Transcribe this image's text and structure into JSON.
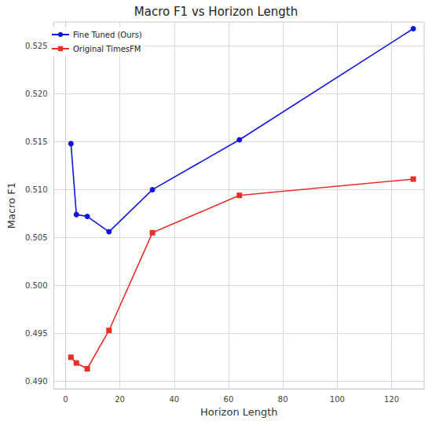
{
  "chart_data": {
    "type": "line",
    "title": "Macro F1 vs Horizon Length",
    "x_label": "Horizon Length",
    "y_label": "Macro F1",
    "x": [
      2,
      4,
      8,
      16,
      32,
      64,
      128
    ],
    "series": [
      {
        "name": "Fine Tuned (Ours)",
        "color": "#1414e0",
        "marker": "circle",
        "line_style": "solid",
        "values": [
          0.5148,
          0.5074,
          0.5072,
          0.5056,
          0.51,
          0.5152,
          0.5268
        ]
      },
      {
        "name": "Original TimesFM",
        "color": "#e8302a",
        "marker": "square",
        "line_style": "solid",
        "values": [
          0.4925,
          0.4919,
          0.4913,
          0.4953,
          0.5055,
          0.5094,
          0.5111
        ]
      }
    ],
    "xlim": [
      -4.3,
      132
    ],
    "xticks": [
      0,
      20,
      40,
      60,
      80,
      100,
      120
    ],
    "ylim": [
      0.4892,
      0.5275
    ],
    "yticks": [
      {
        "value": 0.49,
        "label": "0.490"
      },
      0.495,
      {
        "value": 0.5,
        "label": "0.500"
      },
      0.505,
      {
        "value": 0.51,
        "label": "0.510"
      },
      0.515,
      {
        "value": 0.52,
        "label": "0.520"
      },
      0.525
    ],
    "grid": true,
    "legend": "upper left"
  }
}
